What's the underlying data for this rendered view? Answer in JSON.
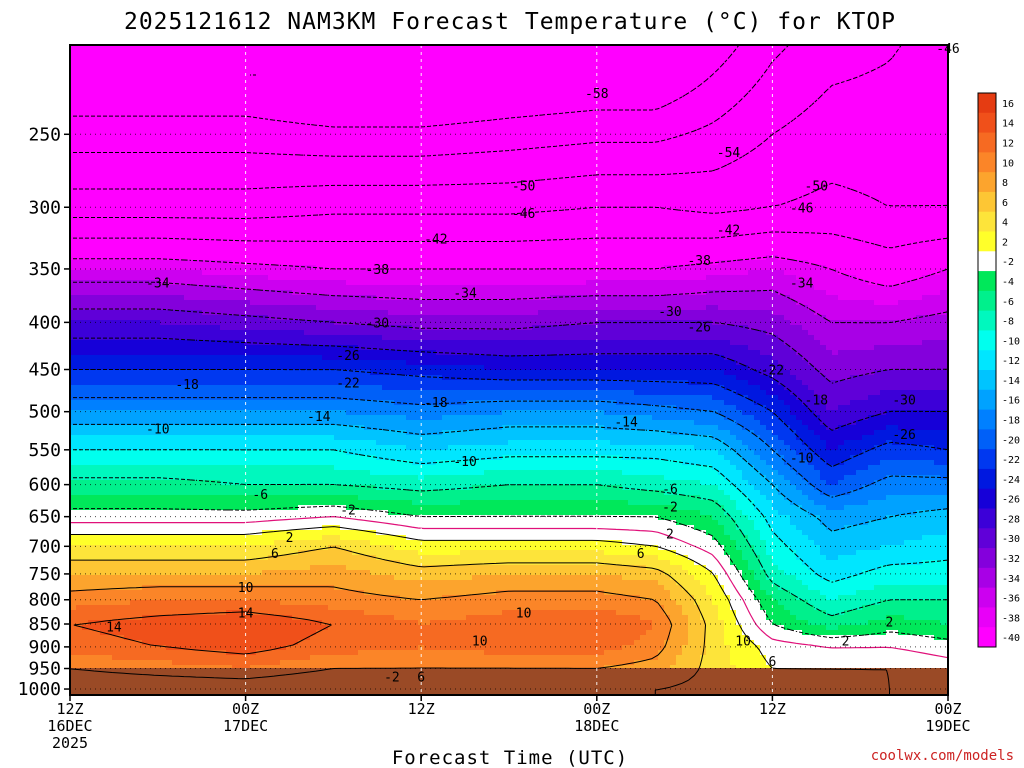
{
  "chart_data": {
    "type": "heatmap",
    "title": "2025121612 NAM3KM Forecast Temperature (°C) for KTOP",
    "xlabel": "Forecast Time (UTC)",
    "watermark": "coolwx.com/models",
    "x_ticks": [
      {
        "h": 0,
        "line1": "12Z",
        "line2": "16DEC",
        "line3": "2025"
      },
      {
        "h": 12,
        "line1": "00Z",
        "line2": "17DEC",
        "line3": ""
      },
      {
        "h": 24,
        "line1": "12Z",
        "line2": "",
        "line3": ""
      },
      {
        "h": 36,
        "line1": "00Z",
        "line2": "18DEC",
        "line3": ""
      },
      {
        "h": 48,
        "line1": "12Z",
        "line2": "",
        "line3": ""
      },
      {
        "h": 60,
        "line1": "00Z",
        "line2": "19DEC",
        "line3": ""
      }
    ],
    "xlim_hours": [
      0,
      60
    ],
    "y_ticks": [
      "250",
      "300",
      "350",
      "400",
      "450",
      "500",
      "550",
      "600",
      "650",
      "700",
      "750",
      "800",
      "850",
      "900",
      "950",
      "1000"
    ],
    "ylim_hpa": [
      200,
      1015
    ],
    "y_scale": "log",
    "colorbar": {
      "labels": [
        "16",
        "14",
        "12",
        "10",
        "8",
        "6",
        "4",
        "2",
        "-2",
        "-4",
        "-6",
        "-8",
        "-10",
        "-12",
        "-14",
        "-16",
        "-18",
        "-20",
        "-22",
        "-24",
        "-26",
        "-28",
        "-30",
        "-32",
        "-34",
        "-36",
        "-38",
        "-40"
      ],
      "colors": [
        "#e53c12",
        "#f0501a",
        "#f66a22",
        "#fb8528",
        "#fca42d",
        "#fdc634",
        "#fde43a",
        "#ffff2a",
        "#ffffff",
        "#00e85a",
        "#00f08c",
        "#00f8be",
        "#00ffee",
        "#00e6ff",
        "#00c4ff",
        "#00a2ff",
        "#0080ff",
        "#0060f8",
        "#0038f0",
        "#0018e0",
        "#1600d8",
        "#3c00d8",
        "#6000d8",
        "#8400dc",
        "#a800e6",
        "#cc00f0",
        "#e800f8",
        "#ff00ff"
      ]
    },
    "profiles_pressure_hpa": [
      250,
      300,
      350,
      400,
      450,
      500,
      550,
      600,
      650,
      700,
      750,
      800,
      850,
      900,
      950,
      1000
    ],
    "profiles": [
      {
        "h": 0,
        "T": [
          -56,
          -48,
          -36,
          -28,
          -22,
          -16,
          -10,
          -5,
          -1,
          4,
          8,
          11,
          14,
          13,
          10,
          8
        ]
      },
      {
        "h": 6,
        "T": [
          -56,
          -48,
          -36,
          -28,
          -22,
          -16,
          -10,
          -5,
          -1,
          4,
          8,
          12,
          15,
          14,
          11,
          8
        ]
      },
      {
        "h": 12,
        "T": [
          -56,
          -48,
          -37,
          -29,
          -22,
          -16,
          -10,
          -6,
          -1,
          4,
          8,
          12,
          16,
          15,
          12,
          8
        ]
      },
      {
        "h": 18,
        "T": [
          -57,
          -47,
          -38,
          -30,
          -22,
          -16,
          -10,
          -6,
          0,
          6,
          9,
          11,
          14,
          13,
          10,
          7
        ]
      },
      {
        "h": 24,
        "T": [
          -57,
          -47,
          -38,
          -31,
          -23,
          -17,
          -12,
          -7,
          -2,
          3,
          7,
          10,
          12,
          12,
          10,
          7
        ]
      },
      {
        "h": 30,
        "T": [
          -56,
          -47,
          -38,
          -31,
          -24,
          -16,
          -11,
          -6,
          -2,
          3,
          8,
          11,
          13,
          13,
          10,
          6
        ]
      },
      {
        "h": 36,
        "T": [
          -55,
          -46,
          -38,
          -30,
          -24,
          -16,
          -11,
          -6,
          -2,
          3,
          8,
          11,
          14,
          13,
          10,
          7
        ]
      },
      {
        "h": 40,
        "T": [
          -55,
          -46,
          -38,
          -30,
          -24,
          -17,
          -11,
          -7,
          -2,
          2,
          7,
          10,
          12,
          11,
          9,
          6
        ]
      },
      {
        "h": 44,
        "T": [
          -53,
          -47,
          -37,
          -30,
          -24,
          -18,
          -12,
          -8,
          -4,
          -1,
          2,
          4,
          5,
          5,
          5,
          5
        ]
      },
      {
        "h": 48,
        "T": [
          -50,
          -46,
          -36,
          -31,
          -27,
          -22,
          -18,
          -14,
          -11,
          -9,
          -7,
          -4,
          -2,
          1,
          2,
          3
        ]
      },
      {
        "h": 52,
        "T": [
          -48,
          -45,
          -38,
          -34,
          -31,
          -28,
          -24,
          -20,
          -15,
          -13,
          -11,
          -8,
          -5,
          0,
          2,
          3
        ]
      },
      {
        "h": 56,
        "T": [
          -48,
          -46,
          -40,
          -34,
          -30,
          -26,
          -21,
          -17,
          -14,
          -12,
          -9,
          -6,
          -3,
          0,
          2,
          2
        ]
      },
      {
        "h": 60,
        "T": [
          -47,
          -46,
          -38,
          -33,
          -30,
          -26,
          -22,
          -17,
          -13,
          -11,
          -9,
          -6,
          -4,
          -1,
          1,
          1
        ]
      }
    ],
    "contour_labels": [
      {
        "text": "-58",
        "h": 36,
        "p": 226
      },
      {
        "text": "-54",
        "h": 45,
        "p": 262
      },
      {
        "text": "-50",
        "h": 31,
        "p": 285
      },
      {
        "text": "-50",
        "h": 51,
        "p": 285
      },
      {
        "text": "-46",
        "h": 31,
        "p": 305
      },
      {
        "text": "-46",
        "h": 50,
        "p": 301
      },
      {
        "text": "-46",
        "h": 60,
        "p": 202
      },
      {
        "text": "-42",
        "h": 25,
        "p": 325
      },
      {
        "text": "-42",
        "h": 45,
        "p": 318
      },
      {
        "text": "-38",
        "h": 21,
        "p": 351
      },
      {
        "text": "-38",
        "h": 43,
        "p": 343
      },
      {
        "text": "-34",
        "h": 6,
        "p": 363
      },
      {
        "text": "-34",
        "h": 27,
        "p": 372
      },
      {
        "text": "-34",
        "h": 50,
        "p": 363
      },
      {
        "text": "-30",
        "h": 21,
        "p": 401
      },
      {
        "text": "-30",
        "h": 41,
        "p": 390
      },
      {
        "text": "-26",
        "h": 19,
        "p": 435
      },
      {
        "text": "-26",
        "h": 43,
        "p": 405
      },
      {
        "text": "-22",
        "h": 19,
        "p": 466
      },
      {
        "text": "-22",
        "h": 48,
        "p": 451
      },
      {
        "text": "-18",
        "h": 8,
        "p": 468
      },
      {
        "text": "-18",
        "h": 25,
        "p": 489
      },
      {
        "text": "-18",
        "h": 51,
        "p": 486
      },
      {
        "text": "-14",
        "h": 17,
        "p": 507
      },
      {
        "text": "-14",
        "h": 38,
        "p": 514
      },
      {
        "text": "-10",
        "h": 6,
        "p": 523
      },
      {
        "text": "-10",
        "h": 27,
        "p": 567
      },
      {
        "text": "-10",
        "h": 50,
        "p": 562
      },
      {
        "text": "-6",
        "h": 13,
        "p": 616
      },
      {
        "text": "-6",
        "h": 41,
        "p": 607
      },
      {
        "text": "-2",
        "h": 19,
        "p": 640
      },
      {
        "text": "-2",
        "h": 41,
        "p": 635
      },
      {
        "text": "2",
        "h": 15,
        "p": 686
      },
      {
        "text": "2",
        "h": 41,
        "p": 680
      },
      {
        "text": "2",
        "h": 56,
        "p": 847
      },
      {
        "text": "2",
        "h": 53,
        "p": 888
      },
      {
        "text": "6",
        "h": 14,
        "p": 714
      },
      {
        "text": "6",
        "h": 39,
        "p": 714
      },
      {
        "text": "6",
        "h": 24,
        "p": 971
      },
      {
        "text": "6",
        "h": 48,
        "p": 935
      },
      {
        "text": "10",
        "h": 12,
        "p": 777
      },
      {
        "text": "10",
        "h": 31,
        "p": 828
      },
      {
        "text": "10",
        "h": 28,
        "p": 888
      },
      {
        "text": "10",
        "h": 46,
        "p": 888
      },
      {
        "text": "14",
        "h": 3,
        "p": 857
      },
      {
        "text": "14",
        "h": 12,
        "p": 828
      },
      {
        "text": "-30",
        "h": 57,
        "p": 486
      },
      {
        "text": "-26",
        "h": 57,
        "p": 530
      },
      {
        "text": "-2",
        "h": 22,
        "p": 971
      }
    ]
  }
}
